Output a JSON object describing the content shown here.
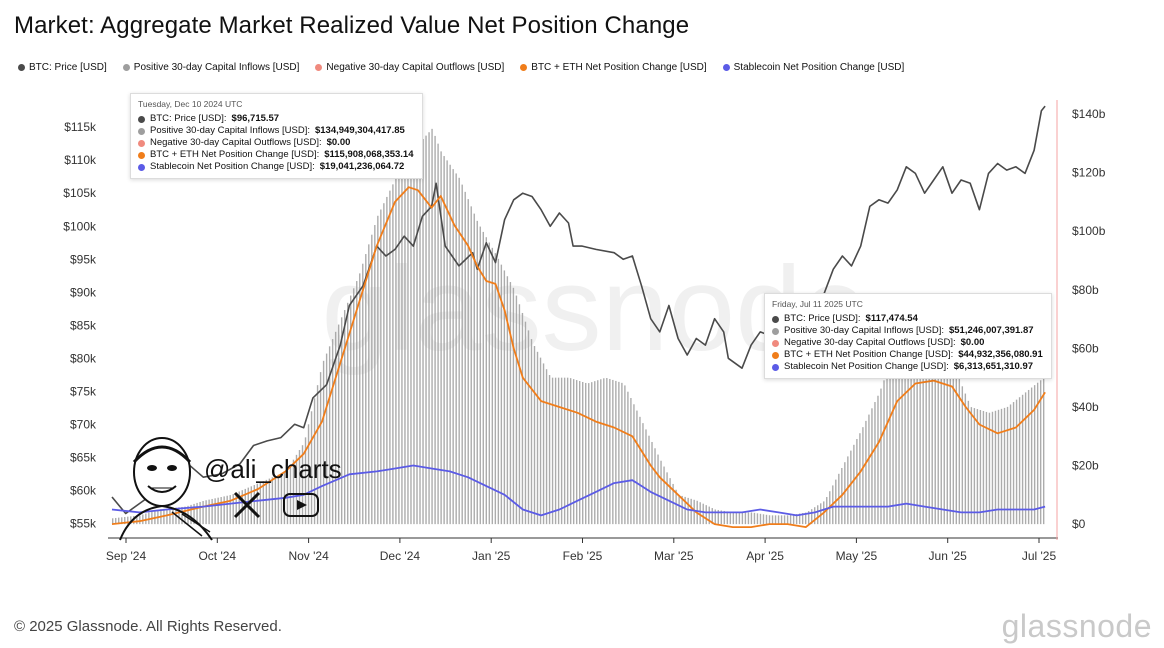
{
  "title": "Market: Aggregate Market Realized Value Net Position Change",
  "legend": [
    {
      "label": "BTC: Price [USD]",
      "color": "#4a4a4a"
    },
    {
      "label": "Positive 30-day Capital Inflows [USD]",
      "color": "#9e9e9e"
    },
    {
      "label": "Negative 30-day Capital Outflows [USD]",
      "color": "#f08a7e"
    },
    {
      "label": "BTC + ETH Net Position Change [USD]",
      "color": "#f07d1a"
    },
    {
      "label": "Stablecoin Net Position Change [USD]",
      "color": "#5b5be6"
    }
  ],
  "tooltip1": {
    "date": "Tuesday, Dec 10 2024 UTC",
    "rows": [
      {
        "label": "BTC: Price [USD]:",
        "value": "$96,715.57"
      },
      {
        "label": "Positive 30-day Capital Inflows [USD]:",
        "value": "$134,949,304,417.85"
      },
      {
        "label": "Negative 30-day Capital Outflows [USD]:",
        "value": "$0.00"
      },
      {
        "label": "BTC + ETH Net Position Change [USD]:",
        "value": "$115,908,068,353.14"
      },
      {
        "label": "Stablecoin Net Position Change [USD]:",
        "value": "$19,041,236,064.72"
      }
    ]
  },
  "tooltip2": {
    "date": "Friday, Jul 11 2025 UTC",
    "rows": [
      {
        "label": "BTC: Price [USD]:",
        "value": "$117,474.54"
      },
      {
        "label": "Positive 30-day Capital Inflows [USD]:",
        "value": "$51,246,007,391.87"
      },
      {
        "label": "Negative 30-day Capital Outflows [USD]:",
        "value": "$0.00"
      },
      {
        "label": "BTC + ETH Net Position Change [USD]:",
        "value": "$44,932,356,080.91"
      },
      {
        "label": "Stablecoin Net Position Change [USD]:",
        "value": "$6,313,651,310.97"
      }
    ]
  },
  "watermark": "glassnode",
  "handle": "@ali_charts",
  "footer": "© 2025 Glassnode. All Rights Reserved.",
  "brand": "glassnode",
  "chart_data": {
    "type": "line",
    "x_ticks": [
      "Sep '24",
      "Oct '24",
      "Nov '24",
      "Dec '24",
      "Jan '25",
      "Feb '25",
      "Mar '25",
      "Apr '25",
      "May '25",
      "Jun '25",
      "Jul '25"
    ],
    "y_left_ticks": [
      "$55k",
      "$60k",
      "$65k",
      "$70k",
      "$75k",
      "$80k",
      "$85k",
      "$90k",
      "$95k",
      "$100k",
      "$105k",
      "$110k",
      "$115k"
    ],
    "y_left_range": [
      54000,
      117000
    ],
    "y_right_ticks": [
      "$0",
      "$20b",
      "$40b",
      "$60b",
      "$80b",
      "$100b",
      "$120b",
      "$140b"
    ],
    "y_right_range": [
      -2,
      140
    ],
    "month_index": [
      "Sep '24",
      "Oct '24",
      "Nov '24",
      "Dec '24",
      "Jan '25",
      "Feb '25",
      "Mar '25",
      "Apr '25",
      "May '25",
      "Jun '25",
      "Jul '25"
    ],
    "series": [
      {
        "name": "BTC: Price [USD]",
        "axis": "left",
        "color": "#4a4a4a",
        "points": [
          [
            0,
            59000
          ],
          [
            0.15,
            56500
          ],
          [
            0.3,
            58000
          ],
          [
            0.5,
            60000
          ],
          [
            0.7,
            62500
          ],
          [
            0.85,
            63800
          ],
          [
            1.0,
            62000
          ],
          [
            1.2,
            62500
          ],
          [
            1.4,
            64000
          ],
          [
            1.55,
            66800
          ],
          [
            1.7,
            67500
          ],
          [
            1.85,
            68000
          ],
          [
            2.0,
            70000
          ],
          [
            2.1,
            69500
          ],
          [
            2.2,
            74000
          ],
          [
            2.35,
            76000
          ],
          [
            2.5,
            82000
          ],
          [
            2.6,
            88000
          ],
          [
            2.75,
            91000
          ],
          [
            2.9,
            97000
          ],
          [
            3.0,
            95500
          ],
          [
            3.1,
            96500
          ],
          [
            3.2,
            98500
          ],
          [
            3.3,
            97000
          ],
          [
            3.4,
            101500
          ],
          [
            3.5,
            103000
          ],
          [
            3.55,
            106500
          ],
          [
            3.65,
            97000
          ],
          [
            3.8,
            94000
          ],
          [
            3.95,
            96000
          ],
          [
            4.0,
            93500
          ],
          [
            4.1,
            97500
          ],
          [
            4.2,
            94500
          ],
          [
            4.3,
            101000
          ],
          [
            4.4,
            104000
          ],
          [
            4.5,
            105000
          ],
          [
            4.6,
            104500
          ],
          [
            4.7,
            102500
          ],
          [
            4.8,
            100000
          ],
          [
            4.9,
            102000
          ],
          [
            5.0,
            100500
          ],
          [
            5.05,
            97000
          ],
          [
            5.15,
            97000
          ],
          [
            5.3,
            96500
          ],
          [
            5.5,
            96000
          ],
          [
            5.6,
            95000
          ],
          [
            5.7,
            95500
          ],
          [
            5.8,
            91000
          ],
          [
            5.9,
            86000
          ],
          [
            6.0,
            84000
          ],
          [
            6.1,
            88000
          ],
          [
            6.2,
            83000
          ],
          [
            6.3,
            80500
          ],
          [
            6.4,
            83000
          ],
          [
            6.5,
            82000
          ],
          [
            6.6,
            86000
          ],
          [
            6.7,
            84000
          ],
          [
            6.75,
            80000
          ],
          [
            6.9,
            78500
          ],
          [
            7.0,
            82000
          ],
          [
            7.1,
            84000
          ],
          [
            7.2,
            83500
          ],
          [
            7.35,
            82500
          ],
          [
            7.5,
            84500
          ],
          [
            7.6,
            85000
          ],
          [
            7.75,
            88000
          ],
          [
            7.9,
            93500
          ],
          [
            8.0,
            95500
          ],
          [
            8.1,
            94000
          ],
          [
            8.2,
            97000
          ],
          [
            8.3,
            103000
          ],
          [
            8.4,
            104000
          ],
          [
            8.5,
            103500
          ],
          [
            8.6,
            105500
          ],
          [
            8.7,
            109000
          ],
          [
            8.8,
            108000
          ],
          [
            8.9,
            105000
          ],
          [
            9.0,
            107000
          ],
          [
            9.1,
            109000
          ],
          [
            9.2,
            105000
          ],
          [
            9.3,
            107000
          ],
          [
            9.4,
            106500
          ],
          [
            9.5,
            102500
          ],
          [
            9.6,
            108000
          ],
          [
            9.7,
            109500
          ],
          [
            9.8,
            108500
          ],
          [
            9.9,
            109000
          ],
          [
            10.0,
            108000
          ],
          [
            10.1,
            111500
          ],
          [
            10.18,
            117500
          ],
          [
            10.22,
            118200
          ]
        ]
      },
      {
        "name": "Positive 30-day Capital Inflows [USD]",
        "axis": "right",
        "color": "#9e9e9e",
        "kind": "bars",
        "points": [
          [
            0,
            2
          ],
          [
            0.3,
            3
          ],
          [
            0.5,
            5
          ],
          [
            0.8,
            6
          ],
          [
            1.0,
            8
          ],
          [
            1.3,
            10
          ],
          [
            1.6,
            14
          ],
          [
            1.9,
            18
          ],
          [
            2.1,
            28
          ],
          [
            2.3,
            55
          ],
          [
            2.5,
            70
          ],
          [
            2.7,
            85
          ],
          [
            2.9,
            105
          ],
          [
            3.1,
            118
          ],
          [
            3.3,
            128
          ],
          [
            3.5,
            135
          ],
          [
            3.6,
            127
          ],
          [
            3.8,
            118
          ],
          [
            4.0,
            103
          ],
          [
            4.2,
            92
          ],
          [
            4.4,
            80
          ],
          [
            4.6,
            62
          ],
          [
            4.8,
            50
          ],
          [
            5.0,
            50
          ],
          [
            5.2,
            48
          ],
          [
            5.4,
            50
          ],
          [
            5.6,
            48
          ],
          [
            5.8,
            35
          ],
          [
            6.0,
            22
          ],
          [
            6.2,
            10
          ],
          [
            6.4,
            8
          ],
          [
            6.6,
            5
          ],
          [
            6.8,
            4
          ],
          [
            7.0,
            4
          ],
          [
            7.2,
            3
          ],
          [
            7.4,
            3
          ],
          [
            7.6,
            4
          ],
          [
            7.8,
            8
          ],
          [
            8.0,
            20
          ],
          [
            8.2,
            32
          ],
          [
            8.4,
            45
          ],
          [
            8.6,
            62
          ],
          [
            8.8,
            68
          ],
          [
            9.0,
            65
          ],
          [
            9.2,
            55
          ],
          [
            9.4,
            40
          ],
          [
            9.6,
            38
          ],
          [
            9.8,
            40
          ],
          [
            10.0,
            45
          ],
          [
            10.2,
            50
          ]
        ]
      },
      {
        "name": "BTC + ETH Net Position Change [USD]",
        "axis": "right",
        "color": "#f07d1a",
        "points": [
          [
            0,
            0
          ],
          [
            0.3,
            1
          ],
          [
            0.6,
            3
          ],
          [
            1.0,
            6
          ],
          [
            1.3,
            8
          ],
          [
            1.6,
            12
          ],
          [
            1.9,
            18
          ],
          [
            2.1,
            24
          ],
          [
            2.3,
            35
          ],
          [
            2.5,
            55
          ],
          [
            2.7,
            75
          ],
          [
            2.9,
            95
          ],
          [
            3.1,
            110
          ],
          [
            3.25,
            115
          ],
          [
            3.35,
            114
          ],
          [
            3.5,
            108
          ],
          [
            3.6,
            112
          ],
          [
            3.75,
            102
          ],
          [
            3.9,
            95
          ],
          [
            4.0,
            88
          ],
          [
            4.1,
            83
          ],
          [
            4.2,
            82
          ],
          [
            4.3,
            73
          ],
          [
            4.4,
            60
          ],
          [
            4.5,
            50
          ],
          [
            4.7,
            42
          ],
          [
            4.9,
            40
          ],
          [
            5.1,
            38
          ],
          [
            5.3,
            35
          ],
          [
            5.5,
            33
          ],
          [
            5.7,
            30
          ],
          [
            5.9,
            20
          ],
          [
            6.0,
            16
          ],
          [
            6.2,
            10
          ],
          [
            6.4,
            4
          ],
          [
            6.6,
            0
          ],
          [
            6.8,
            -1
          ],
          [
            7.0,
            -1
          ],
          [
            7.2,
            0
          ],
          [
            7.4,
            0
          ],
          [
            7.6,
            -1
          ],
          [
            7.8,
            4
          ],
          [
            8.0,
            10
          ],
          [
            8.2,
            18
          ],
          [
            8.4,
            28
          ],
          [
            8.6,
            42
          ],
          [
            8.8,
            48
          ],
          [
            9.0,
            49
          ],
          [
            9.2,
            47
          ],
          [
            9.35,
            40
          ],
          [
            9.5,
            34
          ],
          [
            9.7,
            31
          ],
          [
            9.9,
            33
          ],
          [
            10.0,
            36
          ],
          [
            10.1,
            39
          ],
          [
            10.22,
            45
          ]
        ]
      },
      {
        "name": "Stablecoin Net Position Change [USD]",
        "axis": "right",
        "color": "#5b5be6",
        "points": [
          [
            0,
            5
          ],
          [
            0.3,
            4
          ],
          [
            0.6,
            5
          ],
          [
            1.0,
            6
          ],
          [
            1.3,
            7
          ],
          [
            1.6,
            8
          ],
          [
            1.9,
            9
          ],
          [
            2.1,
            10
          ],
          [
            2.3,
            13
          ],
          [
            2.6,
            17
          ],
          [
            2.9,
            18
          ],
          [
            3.1,
            19
          ],
          [
            3.3,
            20
          ],
          [
            3.5,
            19
          ],
          [
            3.7,
            18
          ],
          [
            3.9,
            16
          ],
          [
            4.1,
            13
          ],
          [
            4.3,
            10
          ],
          [
            4.5,
            5
          ],
          [
            4.7,
            3
          ],
          [
            4.9,
            5
          ],
          [
            5.1,
            8
          ],
          [
            5.3,
            11
          ],
          [
            5.5,
            14
          ],
          [
            5.7,
            15
          ],
          [
            5.9,
            11
          ],
          [
            6.1,
            8
          ],
          [
            6.3,
            5
          ],
          [
            6.5,
            4
          ],
          [
            6.7,
            4
          ],
          [
            6.9,
            4
          ],
          [
            7.1,
            5
          ],
          [
            7.3,
            4
          ],
          [
            7.5,
            3
          ],
          [
            7.7,
            4
          ],
          [
            7.9,
            6
          ],
          [
            8.1,
            6
          ],
          [
            8.3,
            6
          ],
          [
            8.5,
            6
          ],
          [
            8.7,
            7
          ],
          [
            8.9,
            6
          ],
          [
            9.1,
            5
          ],
          [
            9.3,
            4
          ],
          [
            9.5,
            4
          ],
          [
            9.7,
            5
          ],
          [
            9.9,
            5
          ],
          [
            10.1,
            5
          ],
          [
            10.22,
            6
          ]
        ]
      }
    ]
  }
}
